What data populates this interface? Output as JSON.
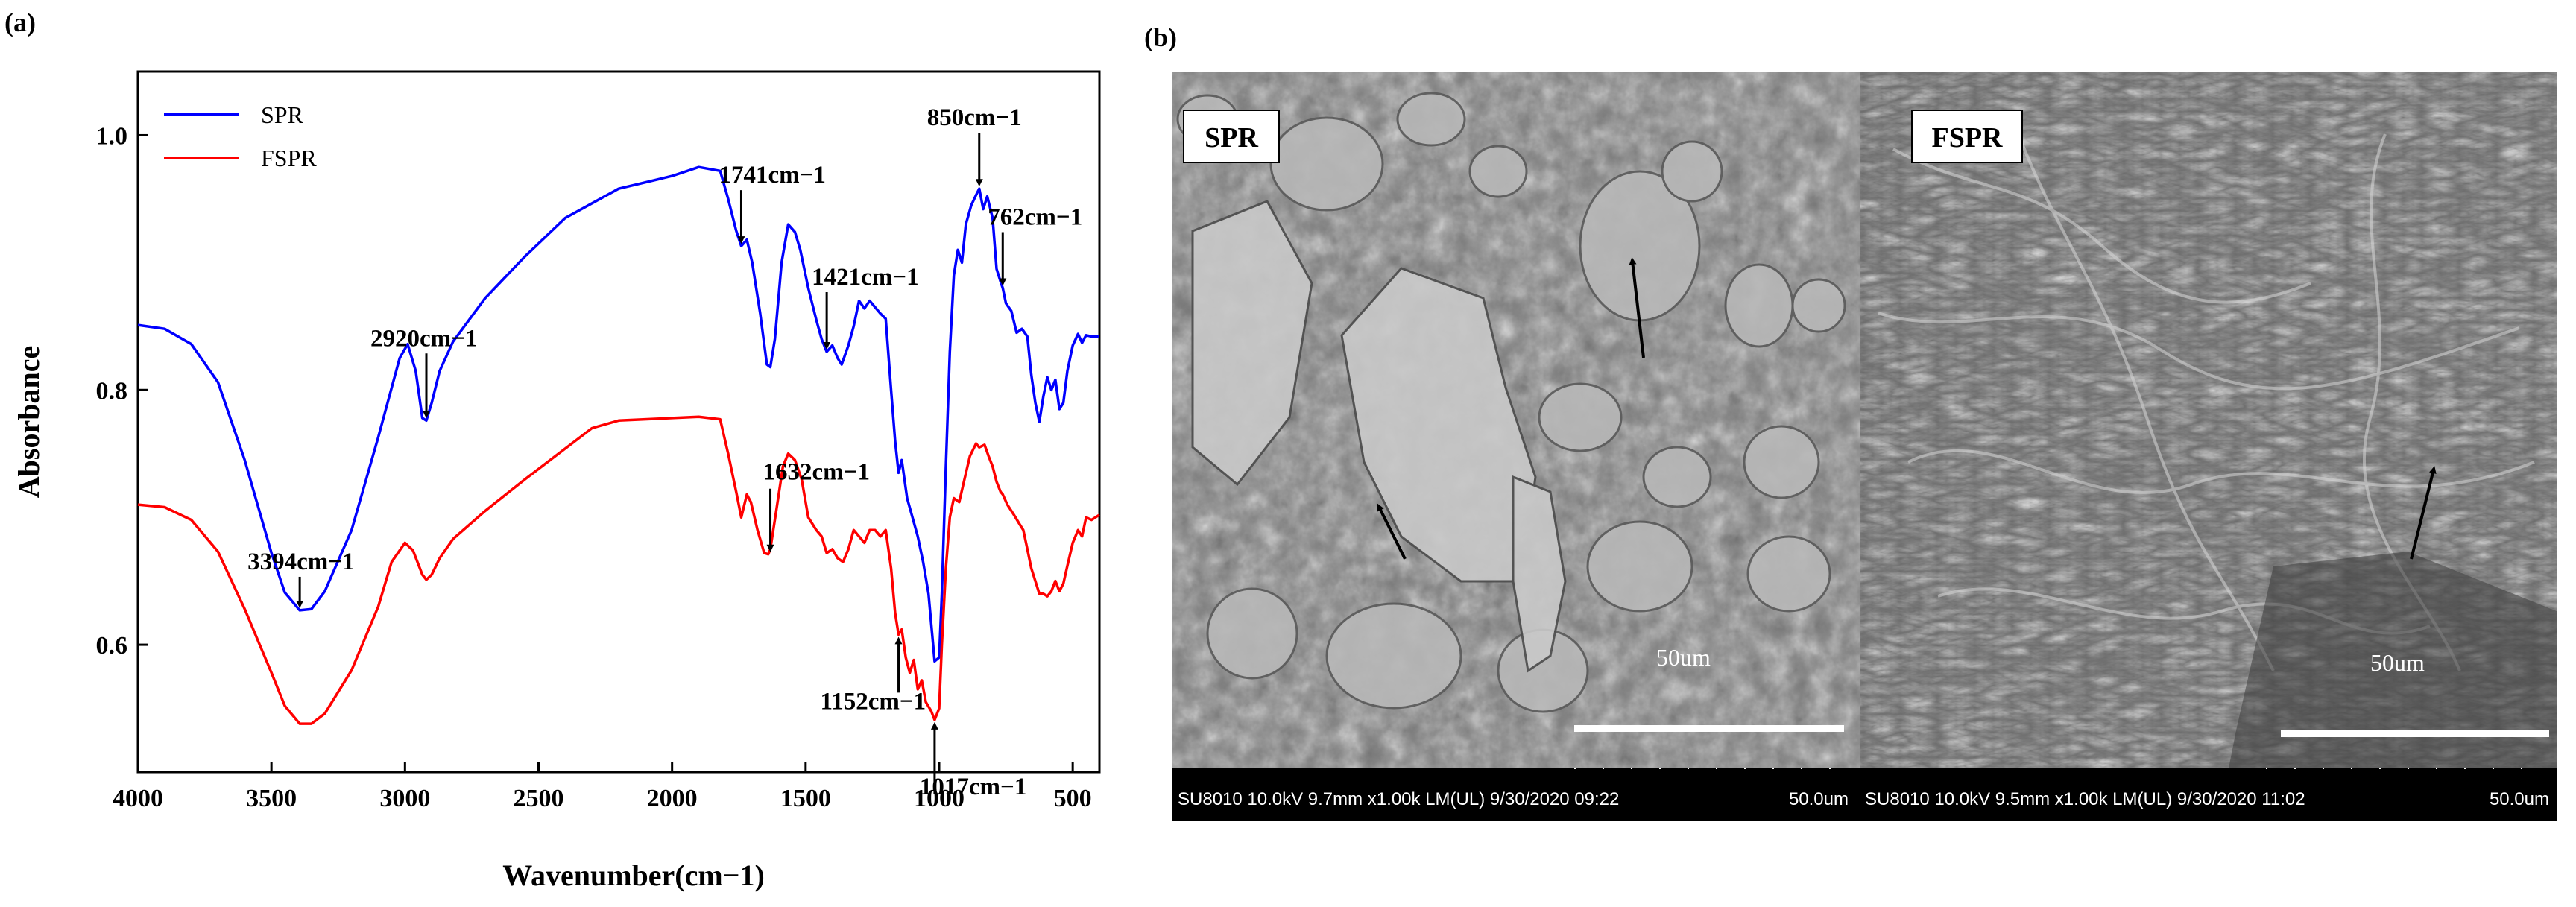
{
  "panel_a": {
    "label": "(a)"
  },
  "panel_b": {
    "label": "(b)"
  },
  "chart_data": {
    "type": "line",
    "title": "",
    "xlabel": "Wavenumber(cm−1)",
    "ylabel": "Absorbance",
    "xlim": [
      4000,
      400
    ],
    "ylim": [
      0.5,
      1.05
    ],
    "x_reversed": true,
    "xticks": [
      4000,
      3500,
      3000,
      2500,
      2000,
      1500,
      1000,
      500
    ],
    "yticks": [
      0.6,
      0.8,
      1.0
    ],
    "ytick_labels": [
      "0.6",
      "0.8",
      "1.0"
    ],
    "legend_position": "top-left",
    "series": [
      {
        "name": "SPR",
        "color": "#0000ff",
        "points": [
          [
            4000,
            0.851
          ],
          [
            3900,
            0.848
          ],
          [
            3800,
            0.836
          ],
          [
            3700,
            0.806
          ],
          [
            3600,
            0.745
          ],
          [
            3500,
            0.672
          ],
          [
            3450,
            0.641
          ],
          [
            3394,
            0.627
          ],
          [
            3350,
            0.628
          ],
          [
            3300,
            0.642
          ],
          [
            3200,
            0.69
          ],
          [
            3100,
            0.763
          ],
          [
            3020,
            0.825
          ],
          [
            2990,
            0.836
          ],
          [
            2960,
            0.815
          ],
          [
            2935,
            0.778
          ],
          [
            2920,
            0.776
          ],
          [
            2900,
            0.79
          ],
          [
            2870,
            0.815
          ],
          [
            2820,
            0.838
          ],
          [
            2700,
            0.872
          ],
          [
            2550,
            0.905
          ],
          [
            2400,
            0.935
          ],
          [
            2200,
            0.958
          ],
          [
            2000,
            0.968
          ],
          [
            1900,
            0.975
          ],
          [
            1820,
            0.972
          ],
          [
            1790,
            0.95
          ],
          [
            1760,
            0.925
          ],
          [
            1741,
            0.913
          ],
          [
            1720,
            0.918
          ],
          [
            1700,
            0.9
          ],
          [
            1670,
            0.86
          ],
          [
            1645,
            0.82
          ],
          [
            1632,
            0.818
          ],
          [
            1615,
            0.84
          ],
          [
            1590,
            0.9
          ],
          [
            1565,
            0.93
          ],
          [
            1540,
            0.924
          ],
          [
            1520,
            0.91
          ],
          [
            1490,
            0.88
          ],
          [
            1460,
            0.855
          ],
          [
            1440,
            0.84
          ],
          [
            1421,
            0.83
          ],
          [
            1400,
            0.835
          ],
          [
            1380,
            0.825
          ],
          [
            1365,
            0.82
          ],
          [
            1340,
            0.835
          ],
          [
            1320,
            0.85
          ],
          [
            1300,
            0.87
          ],
          [
            1280,
            0.864
          ],
          [
            1260,
            0.87
          ],
          [
            1240,
            0.865
          ],
          [
            1220,
            0.86
          ],
          [
            1200,
            0.856
          ],
          [
            1180,
            0.8
          ],
          [
            1165,
            0.76
          ],
          [
            1152,
            0.735
          ],
          [
            1140,
            0.745
          ],
          [
            1120,
            0.715
          ],
          [
            1100,
            0.7
          ],
          [
            1080,
            0.685
          ],
          [
            1060,
            0.665
          ],
          [
            1040,
            0.64
          ],
          [
            1017,
            0.587
          ],
          [
            1000,
            0.59
          ],
          [
            990,
            0.64
          ],
          [
            975,
            0.74
          ],
          [
            960,
            0.83
          ],
          [
            945,
            0.89
          ],
          [
            930,
            0.91
          ],
          [
            915,
            0.9
          ],
          [
            900,
            0.93
          ],
          [
            880,
            0.945
          ],
          [
            862,
            0.953
          ],
          [
            850,
            0.958
          ],
          [
            835,
            0.942
          ],
          [
            820,
            0.952
          ],
          [
            800,
            0.935
          ],
          [
            785,
            0.895
          ],
          [
            770,
            0.885
          ],
          [
            762,
            0.88
          ],
          [
            750,
            0.868
          ],
          [
            730,
            0.862
          ],
          [
            710,
            0.845
          ],
          [
            690,
            0.848
          ],
          [
            670,
            0.842
          ],
          [
            655,
            0.812
          ],
          [
            640,
            0.79
          ],
          [
            625,
            0.775
          ],
          [
            610,
            0.795
          ],
          [
            595,
            0.81
          ],
          [
            580,
            0.8
          ],
          [
            565,
            0.808
          ],
          [
            550,
            0.785
          ],
          [
            535,
            0.79
          ],
          [
            520,
            0.815
          ],
          [
            500,
            0.835
          ],
          [
            480,
            0.844
          ],
          [
            465,
            0.837
          ],
          [
            450,
            0.843
          ],
          [
            430,
            0.842
          ],
          [
            400,
            0.842
          ]
        ]
      },
      {
        "name": "FSPR",
        "color": "#ff0000",
        "points": [
          [
            4000,
            0.71
          ],
          [
            3900,
            0.708
          ],
          [
            3800,
            0.698
          ],
          [
            3700,
            0.673
          ],
          [
            3600,
            0.628
          ],
          [
            3500,
            0.578
          ],
          [
            3450,
            0.552
          ],
          [
            3394,
            0.538
          ],
          [
            3350,
            0.538
          ],
          [
            3300,
            0.546
          ],
          [
            3200,
            0.58
          ],
          [
            3100,
            0.63
          ],
          [
            3050,
            0.665
          ],
          [
            3000,
            0.68
          ],
          [
            2970,
            0.674
          ],
          [
            2935,
            0.655
          ],
          [
            2920,
            0.651
          ],
          [
            2900,
            0.655
          ],
          [
            2870,
            0.668
          ],
          [
            2820,
            0.683
          ],
          [
            2700,
            0.705
          ],
          [
            2550,
            0.73
          ],
          [
            2400,
            0.754
          ],
          [
            2300,
            0.77
          ],
          [
            2200,
            0.776
          ],
          [
            2000,
            0.778
          ],
          [
            1900,
            0.779
          ],
          [
            1820,
            0.777
          ],
          [
            1790,
            0.75
          ],
          [
            1760,
            0.72
          ],
          [
            1741,
            0.7
          ],
          [
            1720,
            0.718
          ],
          [
            1705,
            0.712
          ],
          [
            1680,
            0.69
          ],
          [
            1655,
            0.672
          ],
          [
            1640,
            0.671
          ],
          [
            1632,
            0.675
          ],
          [
            1610,
            0.705
          ],
          [
            1585,
            0.74
          ],
          [
            1565,
            0.75
          ],
          [
            1540,
            0.745
          ],
          [
            1515,
            0.73
          ],
          [
            1490,
            0.7
          ],
          [
            1460,
            0.69
          ],
          [
            1440,
            0.685
          ],
          [
            1421,
            0.672
          ],
          [
            1400,
            0.675
          ],
          [
            1380,
            0.668
          ],
          [
            1360,
            0.665
          ],
          [
            1340,
            0.675
          ],
          [
            1320,
            0.69
          ],
          [
            1300,
            0.685
          ],
          [
            1280,
            0.68
          ],
          [
            1260,
            0.69
          ],
          [
            1240,
            0.69
          ],
          [
            1220,
            0.685
          ],
          [
            1200,
            0.69
          ],
          [
            1180,
            0.66
          ],
          [
            1165,
            0.625
          ],
          [
            1152,
            0.608
          ],
          [
            1140,
            0.612
          ],
          [
            1125,
            0.59
          ],
          [
            1110,
            0.578
          ],
          [
            1095,
            0.588
          ],
          [
            1080,
            0.565
          ],
          [
            1065,
            0.572
          ],
          [
            1050,
            0.555
          ],
          [
            1030,
            0.548
          ],
          [
            1017,
            0.541
          ],
          [
            1000,
            0.55
          ],
          [
            990,
            0.6
          ],
          [
            975,
            0.66
          ],
          [
            960,
            0.7
          ],
          [
            945,
            0.715
          ],
          [
            925,
            0.712
          ],
          [
            905,
            0.73
          ],
          [
            885,
            0.748
          ],
          [
            862,
            0.758
          ],
          [
            850,
            0.755
          ],
          [
            830,
            0.757
          ],
          [
            815,
            0.748
          ],
          [
            800,
            0.74
          ],
          [
            785,
            0.728
          ],
          [
            770,
            0.72
          ],
          [
            762,
            0.718
          ],
          [
            745,
            0.71
          ],
          [
            720,
            0.702
          ],
          [
            700,
            0.695
          ],
          [
            685,
            0.69
          ],
          [
            670,
            0.675
          ],
          [
            655,
            0.66
          ],
          [
            640,
            0.65
          ],
          [
            625,
            0.64
          ],
          [
            610,
            0.64
          ],
          [
            595,
            0.638
          ],
          [
            580,
            0.642
          ],
          [
            565,
            0.65
          ],
          [
            550,
            0.642
          ],
          [
            535,
            0.648
          ],
          [
            520,
            0.662
          ],
          [
            500,
            0.68
          ],
          [
            480,
            0.69
          ],
          [
            465,
            0.685
          ],
          [
            450,
            0.7
          ],
          [
            430,
            0.698
          ],
          [
            400,
            0.702
          ]
        ]
      }
    ],
    "annotations": [
      {
        "text": "3394cm−1",
        "x": 3394,
        "y": 0.627,
        "arrow": "down"
      },
      {
        "text": "2920cm−1",
        "x": 2920,
        "y": 0.776,
        "arrow": "down"
      },
      {
        "text": "1741cm−1",
        "x": 1741,
        "y": 0.913,
        "arrow": "down"
      },
      {
        "text": "1632cm−1",
        "x": 1632,
        "y": 0.671,
        "arrow": "down"
      },
      {
        "text": "1421cm−1",
        "x": 1421,
        "y": 0.83,
        "arrow": "down"
      },
      {
        "text": "1152cm−1",
        "x": 1152,
        "y": 0.608,
        "arrow": "up"
      },
      {
        "text": "1017cm−1",
        "x": 1017,
        "y": 0.541,
        "arrow": "up"
      },
      {
        "text": "850cm−1",
        "x": 850,
        "y": 0.958,
        "arrow": "down"
      },
      {
        "text": "762cm−1",
        "x": 762,
        "y": 0.88,
        "arrow": "down"
      }
    ]
  },
  "sem_images": [
    {
      "tag": "SPR",
      "scale_label": "50um",
      "status_left": "SU8010 10.0kV 9.7mm x1.00k LM(UL) 9/30/2020 09:22",
      "status_right": "50.0um"
    },
    {
      "tag": "FSPR",
      "scale_label": "50um",
      "status_left": "SU8010 10.0kV 9.5mm x1.00k LM(UL) 9/30/2020 11:02",
      "status_right": "50.0um"
    }
  ]
}
